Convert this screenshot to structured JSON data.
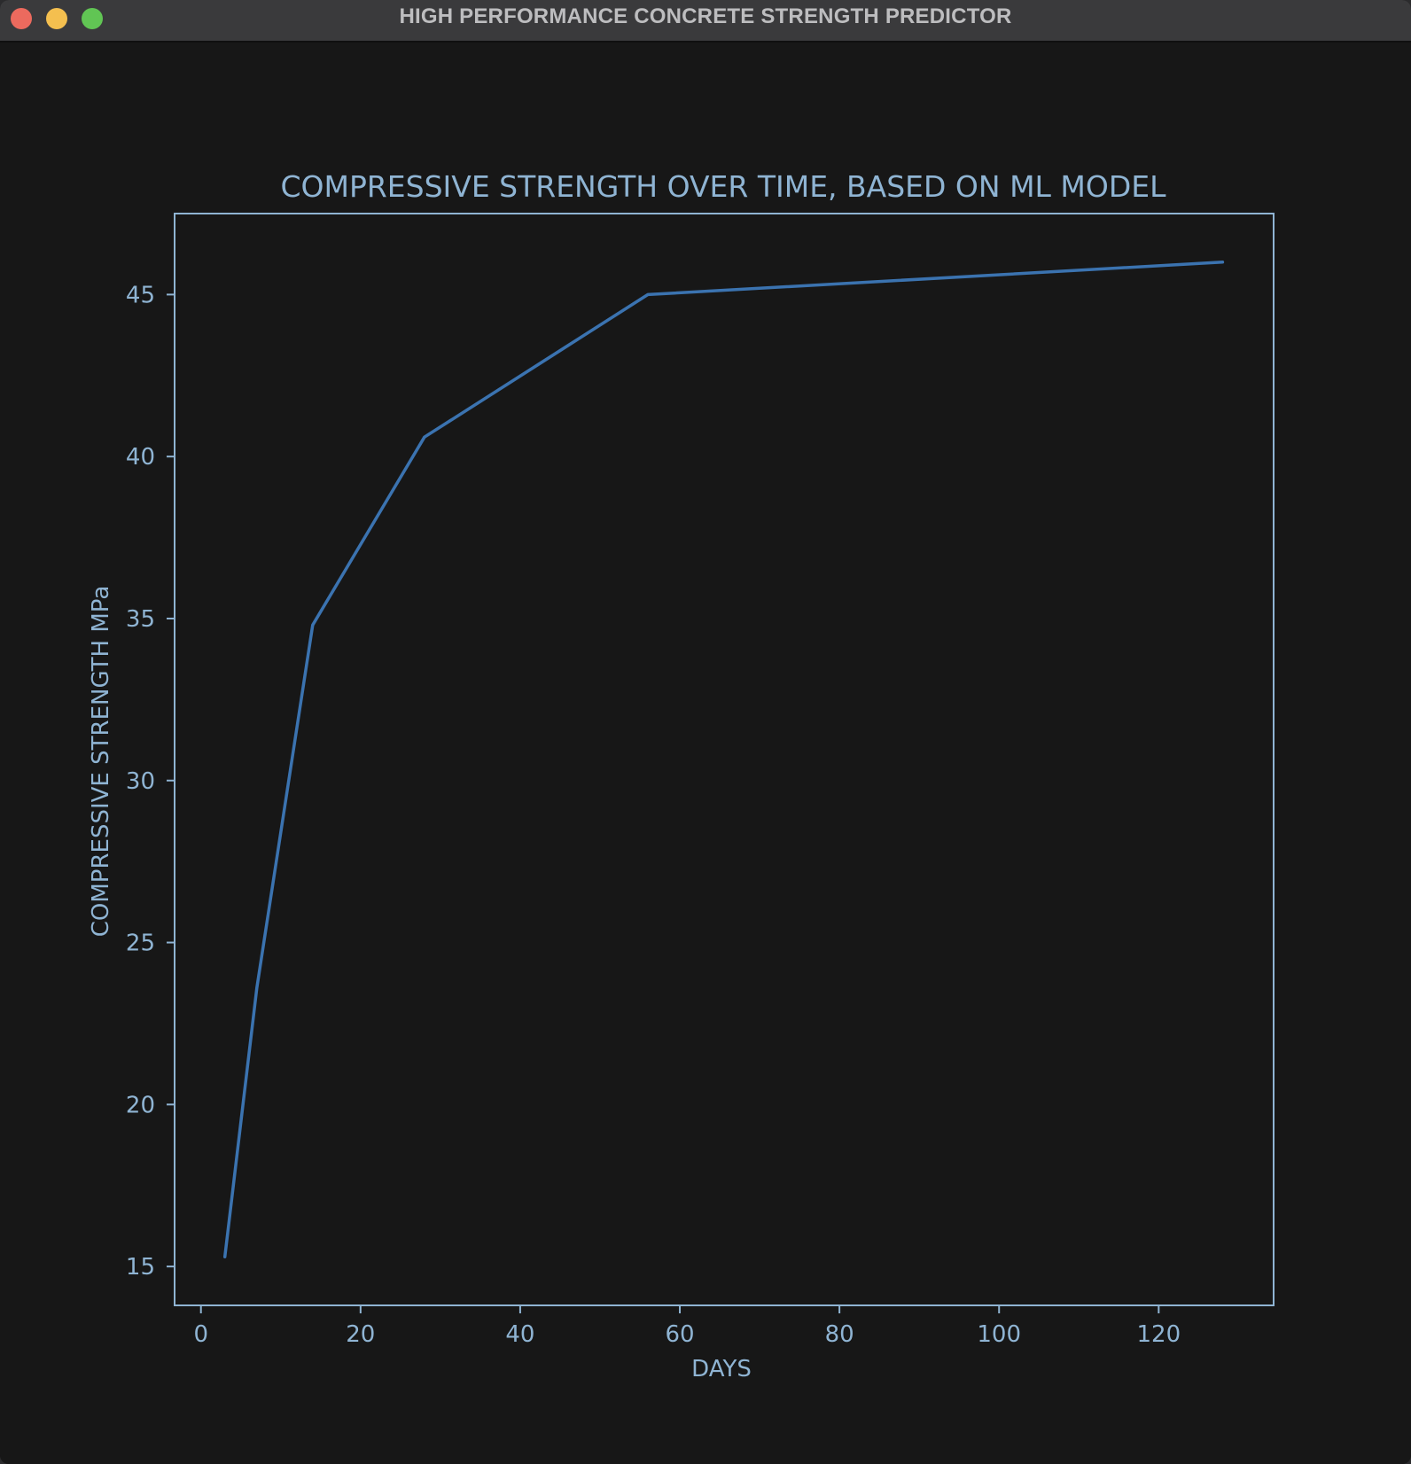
{
  "window": {
    "title": "HIGH PERFORMANCE CONCRETE STRENGTH PREDICTOR"
  },
  "colors": {
    "background": "#171717",
    "axis": "#8fb4d3",
    "line": "#3b73b0",
    "text": "#8fb4d3"
  },
  "chart_data": {
    "type": "line",
    "title": "COMPRESSIVE STRENGTH OVER TIME, BASED ON ML MODEL",
    "xlabel": "DAYS",
    "ylabel": "COMPRESSIVE STRENGTH MPa",
    "xlim": [
      -3.3,
      134.4
    ],
    "ylim": [
      13.8,
      47.5
    ],
    "xticks": [
      0,
      20,
      40,
      60,
      80,
      100,
      120
    ],
    "yticks": [
      15,
      20,
      25,
      30,
      35,
      40,
      45
    ],
    "grid": false,
    "legend": "none",
    "series": [
      {
        "x": [
          3,
          7,
          14,
          28,
          56,
          128
        ],
        "values": [
          15.3,
          23.6,
          34.8,
          40.6,
          45.0,
          46.0
        ]
      }
    ]
  }
}
